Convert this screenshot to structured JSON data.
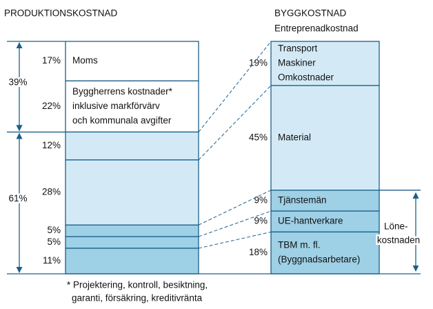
{
  "chart_data": {
    "type": "stacked-comparison",
    "bars": [
      {
        "title": "PRODUKTIONSKOSTNAD",
        "values": [
          17,
          22,
          12,
          28,
          5,
          5,
          11
        ],
        "value_labels": [
          "17%",
          "22%",
          "12%",
          "28%",
          "5%",
          "5%",
          "11%"
        ],
        "labels": [
          [
            "Moms"
          ],
          [
            "Byggherrens kostnader*",
            "inklusive markförvärv",
            "och kommunala avgifter"
          ],
          null,
          null,
          null,
          null,
          null
        ],
        "colors": [
          "#ffffff",
          "#ffffff",
          "#d3eaf6",
          "#d3eaf6",
          "#9ed0e6",
          "#9ed0e6",
          "#9ed0e6"
        ],
        "groups": [
          {
            "value": 39,
            "value_label": "39%"
          },
          {
            "value": 61,
            "value_label": "61%"
          }
        ]
      },
      {
        "title": "BYGGKOSTNAD",
        "subtitle": "Entreprenadkostnad",
        "values": [
          19,
          45,
          9,
          9,
          18
        ],
        "value_labels": [
          "19%",
          "45%",
          "9%",
          "9%",
          "18%"
        ],
        "labels": [
          [
            "Transport",
            "Maskiner",
            "Omkostnader"
          ],
          [
            "Material"
          ],
          [
            "Tjänstemän"
          ],
          [
            "UE-hantverkare"
          ],
          [
            "TBM m. fl.",
            "(Byggnadsarbetare)"
          ]
        ],
        "colors": [
          "#d3eaf6",
          "#d3eaf6",
          "#9ed0e6",
          "#9ed0e6",
          "#9ed0e6"
        ],
        "group_label": [
          "Löne-",
          "kostnaden"
        ]
      }
    ],
    "footnote": [
      "* Projektering, kontroll, besiktning,",
      "garanti, försäkring, kreditivränta"
    ]
  }
}
